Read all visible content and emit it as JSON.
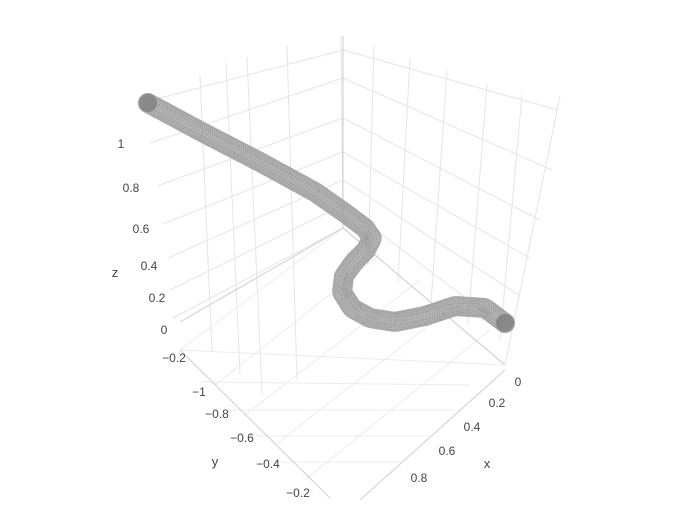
{
  "chart_data": {
    "type": "scatter3d",
    "title": "",
    "marker": {
      "color": "#7f7f7f",
      "line_color": "#a9a9a9",
      "symbol": "circle"
    },
    "axes": {
      "x": {
        "title": "x",
        "ticks": [
          "0",
          "0.2",
          "0.4",
          "0.6",
          "0.8"
        ],
        "range": [
          0,
          1
        ]
      },
      "y": {
        "title": "y",
        "ticks": [
          "−1",
          "−0.8",
          "−0.6",
          "−0.4",
          "−0.2"
        ],
        "range": [
          -1.1,
          0
        ]
      },
      "z": {
        "title": "z",
        "ticks": [
          "−0.2",
          "0",
          "0.2",
          "0.4",
          "0.6",
          "0.8",
          "1"
        ],
        "range": [
          -0.3,
          1.2
        ]
      }
    },
    "grid": true,
    "legend": false
  }
}
